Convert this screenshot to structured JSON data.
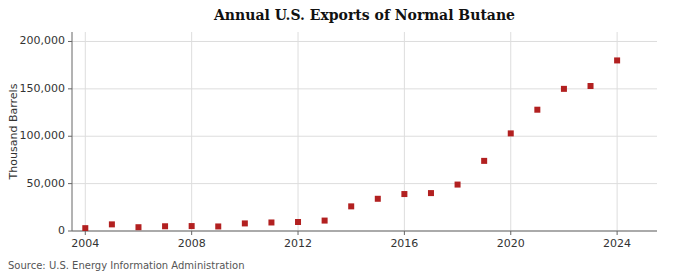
{
  "chart_data": {
    "type": "scatter",
    "title": "Annual U.S. Exports of Normal Butane",
    "ylabel": "Thousand Barrels",
    "annotations": [
      "Source: U.S. Energy Information Administration"
    ],
    "x": [
      2004,
      2005,
      2006,
      2007,
      2008,
      2009,
      2010,
      2011,
      2012,
      2013,
      2014,
      2015,
      2016,
      2017,
      2018,
      2019,
      2020,
      2021,
      2022,
      2023,
      2024
    ],
    "values": [
      3000,
      7000,
      4000,
      5000,
      5200,
      4800,
      8000,
      9000,
      9500,
      11000,
      26000,
      34000,
      39000,
      40000,
      49000,
      74000,
      103000,
      128000,
      150000,
      153000,
      180000
    ],
    "color": "#b22020",
    "marker": "square",
    "xlim": [
      2003.5,
      2025.5
    ],
    "ylim": [
      0,
      210000
    ],
    "xticks": [
      2004,
      2008,
      2012,
      2016,
      2020,
      2024
    ],
    "yticks": [
      0,
      {
        "value": 50000,
        "label": "50,000"
      },
      {
        "value": 100000,
        "label": "100,000"
      },
      {
        "value": 150000,
        "label": "150,000"
      },
      {
        "value": 200000,
        "label": "200,000"
      }
    ],
    "grid": true
  }
}
